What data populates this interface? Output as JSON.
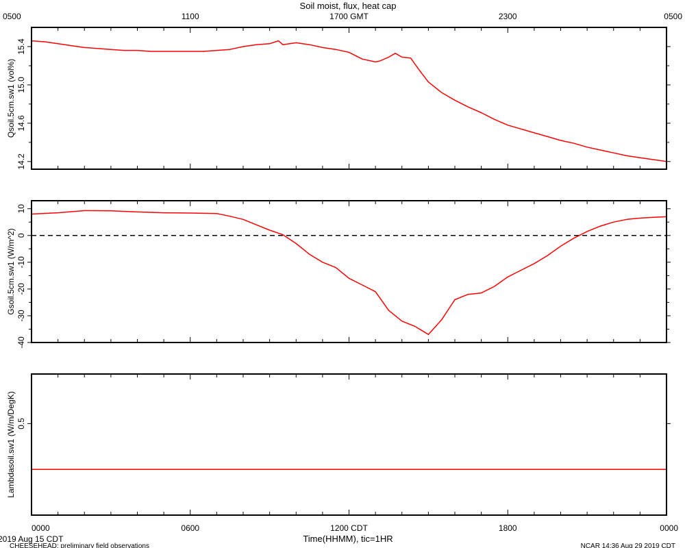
{
  "chart_data": {
    "type": "line",
    "title": "Soil moist, flux, heat cap",
    "x_start": "2019-08-15 00:00 CDT",
    "x_end": "2019-08-16 00:00 CDT",
    "bottom_axis": {
      "label": "Time(HHMM), tic=1HR",
      "tick_labels": [
        "0000",
        "0600",
        "1200 CDT",
        "1800",
        "0000"
      ]
    },
    "top_axis": {
      "tick_labels": [
        "0500",
        "1100",
        "1700 GMT",
        "2300",
        "0500"
      ]
    },
    "grid": false,
    "color": "#ff0000",
    "panels": [
      {
        "ylabel": "Qsoil.5cm.sw1 (vol%)",
        "ylim": [
          14.12,
          15.6
        ],
        "yticks": [
          14.2,
          14.6,
          15.0,
          15.4
        ],
        "ytick_labels": [
          "14.2",
          "14.6",
          "15.0",
          "15.4"
        ],
        "points": [
          [
            "00:00",
            15.46
          ],
          [
            "00:30",
            15.45
          ],
          [
            "01:00",
            15.43
          ],
          [
            "01:30",
            15.41
          ],
          [
            "02:00",
            15.39
          ],
          [
            "02:30",
            15.38
          ],
          [
            "03:00",
            15.37
          ],
          [
            "03:30",
            15.36
          ],
          [
            "04:00",
            15.36
          ],
          [
            "04:30",
            15.35
          ],
          [
            "05:00",
            15.35
          ],
          [
            "05:30",
            15.35
          ],
          [
            "06:00",
            15.35
          ],
          [
            "06:30",
            15.35
          ],
          [
            "07:00",
            15.36
          ],
          [
            "07:30",
            15.37
          ],
          [
            "08:00",
            15.4
          ],
          [
            "08:30",
            15.42
          ],
          [
            "09:00",
            15.43
          ],
          [
            "09:20",
            15.46
          ],
          [
            "09:30",
            15.42
          ],
          [
            "10:00",
            15.44
          ],
          [
            "10:30",
            15.42
          ],
          [
            "11:00",
            15.39
          ],
          [
            "11:30",
            15.37
          ],
          [
            "12:00",
            15.34
          ],
          [
            "12:30",
            15.27
          ],
          [
            "13:00",
            15.24
          ],
          [
            "13:10",
            15.25
          ],
          [
            "13:30",
            15.29
          ],
          [
            "13:45",
            15.33
          ],
          [
            "14:00",
            15.29
          ],
          [
            "14:20",
            15.28
          ],
          [
            "14:40",
            15.15
          ],
          [
            "15:00",
            15.03
          ],
          [
            "15:30",
            14.92
          ],
          [
            "16:00",
            14.84
          ],
          [
            "16:30",
            14.77
          ],
          [
            "17:00",
            14.71
          ],
          [
            "17:30",
            14.64
          ],
          [
            "18:00",
            14.58
          ],
          [
            "18:30",
            14.54
          ],
          [
            "19:00",
            14.5
          ],
          [
            "19:30",
            14.46
          ],
          [
            "20:00",
            14.42
          ],
          [
            "20:30",
            14.39
          ],
          [
            "21:00",
            14.35
          ],
          [
            "21:30",
            14.32
          ],
          [
            "22:00",
            14.29
          ],
          [
            "22:30",
            14.26
          ],
          [
            "23:00",
            14.24
          ],
          [
            "23:30",
            14.22
          ],
          [
            "24:00",
            14.2
          ]
        ]
      },
      {
        "ylabel": "Gsoil.5cm.sw1 (W/m^2)",
        "ylim": [
          -40,
          13
        ],
        "yticks": [
          -40,
          -30,
          -20,
          -10,
          0,
          10
        ],
        "ytick_labels": [
          "-40",
          "-30",
          "-20",
          "-10",
          "0",
          "10"
        ],
        "reference_line": 0,
        "points": [
          [
            "00:00",
            8.0
          ],
          [
            "01:00",
            8.5
          ],
          [
            "02:00",
            9.3
          ],
          [
            "03:00",
            9.2
          ],
          [
            "04:00",
            8.8
          ],
          [
            "05:00",
            8.5
          ],
          [
            "06:00",
            8.4
          ],
          [
            "07:00",
            8.2
          ],
          [
            "07:30",
            7.2
          ],
          [
            "08:00",
            6.0
          ],
          [
            "08:30",
            4.0
          ],
          [
            "09:00",
            2.0
          ],
          [
            "09:30",
            0.3
          ],
          [
            "10:00",
            -3.0
          ],
          [
            "10:30",
            -7.0
          ],
          [
            "11:00",
            -10.0
          ],
          [
            "11:30",
            -12.0
          ],
          [
            "12:00",
            -16.0
          ],
          [
            "12:30",
            -18.5
          ],
          [
            "13:00",
            -21.0
          ],
          [
            "13:30",
            -28.0
          ],
          [
            "14:00",
            -32.0
          ],
          [
            "14:30",
            -34.0
          ],
          [
            "15:00",
            -37.0
          ],
          [
            "15:30",
            -31.5
          ],
          [
            "16:00",
            -24.0
          ],
          [
            "16:30",
            -22.0
          ],
          [
            "17:00",
            -21.5
          ],
          [
            "17:30",
            -19.0
          ],
          [
            "18:00",
            -15.5
          ],
          [
            "18:30",
            -13.0
          ],
          [
            "19:00",
            -10.5
          ],
          [
            "19:30",
            -7.5
          ],
          [
            "20:00",
            -4.0
          ],
          [
            "20:30",
            -1.0
          ],
          [
            "21:00",
            1.5
          ],
          [
            "21:30",
            3.5
          ],
          [
            "22:00",
            5.0
          ],
          [
            "22:30",
            6.0
          ],
          [
            "23:00",
            6.5
          ],
          [
            "23:30",
            6.8
          ],
          [
            "24:00",
            7.0
          ]
        ]
      },
      {
        "ylabel": "Lambdasoil.sw1 (W/m/DegK)",
        "ylim": [
          0.26,
          0.63
        ],
        "yticks": [
          0.5
        ],
        "ytick_labels": [
          "0.5"
        ],
        "points": [
          [
            "00:00",
            0.38
          ],
          [
            "24:00",
            0.38
          ]
        ]
      }
    ]
  },
  "footer": {
    "left_date": "2019 Aug 15 CDT",
    "left_note": "CHEESEHEAD: preliminary field observations",
    "right_note": "NCAR 14:36 Aug 29 2019 CDT"
  }
}
